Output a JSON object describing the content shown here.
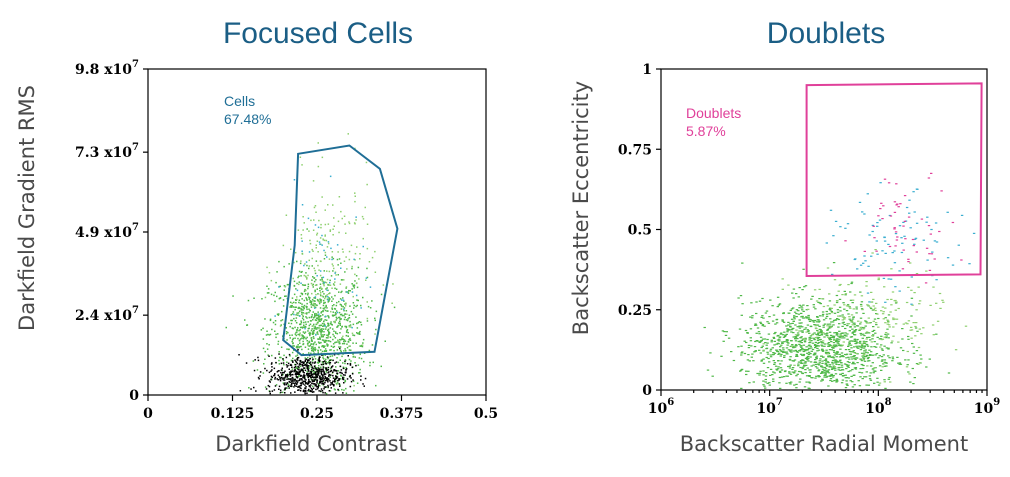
{
  "chart_data": [
    {
      "type": "scatter",
      "title": "Focused Cells",
      "xlabel": "Darkfield Contrast",
      "ylabel": "Darkfield Gradient RMS",
      "xlim": [
        0,
        0.5
      ],
      "ylim": [
        0,
        98000000
      ],
      "x_ticks": [
        0,
        0.125,
        0.25,
        0.375,
        0.5
      ],
      "x_tick_labels": [
        "0",
        "0.125",
        "0.25",
        "0.375",
        "0.5"
      ],
      "y_ticks": [
        0,
        24000000,
        49000000,
        73000000,
        98000000
      ],
      "y_tick_mantissas": [
        "0",
        "2.4 x10",
        "4.9 x10",
        "7.3 x10",
        "9.8 x10"
      ],
      "y_tick_exponents": [
        "",
        "7",
        "7",
        "7",
        "7"
      ],
      "gate": {
        "label": "Cells",
        "value": "67.48%",
        "color": "#1f6e96",
        "vertices": [
          [
            0.222,
            72500000
          ],
          [
            0.298,
            75000000
          ],
          [
            0.343,
            68000000
          ],
          [
            0.369,
            50000000
          ],
          [
            0.335,
            13000000
          ],
          [
            0.227,
            12000000
          ],
          [
            0.2,
            16500000
          ],
          [
            0.217,
            45000000
          ]
        ]
      },
      "series": [
        {
          "name": "gated-cells",
          "color": "#4fb848",
          "center": [
            0.25,
            19000000
          ],
          "spread": [
            0.036,
            9500000
          ],
          "count": 1100
        },
        {
          "name": "gated-cells-light",
          "color": "#8fd06f",
          "center": [
            0.265,
            38000000
          ],
          "spread": [
            0.035,
            14000000
          ],
          "count": 220
        },
        {
          "name": "gated-cells-cyan",
          "color": "#3aaed0",
          "center": [
            0.26,
            35000000
          ],
          "spread": [
            0.03,
            12000000
          ],
          "count": 60
        },
        {
          "name": "ungated-debris",
          "color": "#000000",
          "center": [
            0.235,
            6000000
          ],
          "spread": [
            0.03,
            3000000
          ],
          "count": 650
        }
      ]
    },
    {
      "type": "scatter",
      "title": "Doublets",
      "xlabel": "Backscatter Radial Moment",
      "ylabel": "Backscatter Eccentricity",
      "xscale": "log",
      "xlim": [
        6,
        9
      ],
      "ylim": [
        0,
        1
      ],
      "x_ticks": [
        6,
        7,
        8,
        9
      ],
      "x_tick_bases": [
        "10",
        "10",
        "10",
        "10"
      ],
      "x_tick_exponents": [
        "6",
        "7",
        "8",
        "9"
      ],
      "y_ticks": [
        0,
        0.25,
        0.5,
        0.75,
        1
      ],
      "y_tick_labels": [
        "0",
        "0.25",
        "0.5",
        "0.75",
        "1"
      ],
      "gate": {
        "label": "Doublets",
        "value": "5.87%",
        "color": "#e0409a",
        "vertices": [
          [
            7.34,
            0.95
          ],
          [
            8.95,
            0.955
          ],
          [
            8.94,
            0.36
          ],
          [
            7.34,
            0.355
          ]
        ]
      },
      "series": [
        {
          "name": "singlets",
          "color": "#4fb848",
          "center": [
            7.45,
            0.13
          ],
          "spread": [
            0.36,
            0.075
          ],
          "count": 1300
        },
        {
          "name": "singlets-light",
          "color": "#8fd06f",
          "center": [
            7.9,
            0.22
          ],
          "spread": [
            0.35,
            0.08
          ],
          "count": 200
        },
        {
          "name": "doublets-cyan",
          "color": "#3aaed0",
          "center": [
            8.15,
            0.45
          ],
          "spread": [
            0.28,
            0.08
          ],
          "count": 90
        },
        {
          "name": "doublets-magenta",
          "color": "#e0409a",
          "center": [
            8.25,
            0.52
          ],
          "spread": [
            0.22,
            0.08
          ],
          "count": 55
        }
      ]
    }
  ]
}
